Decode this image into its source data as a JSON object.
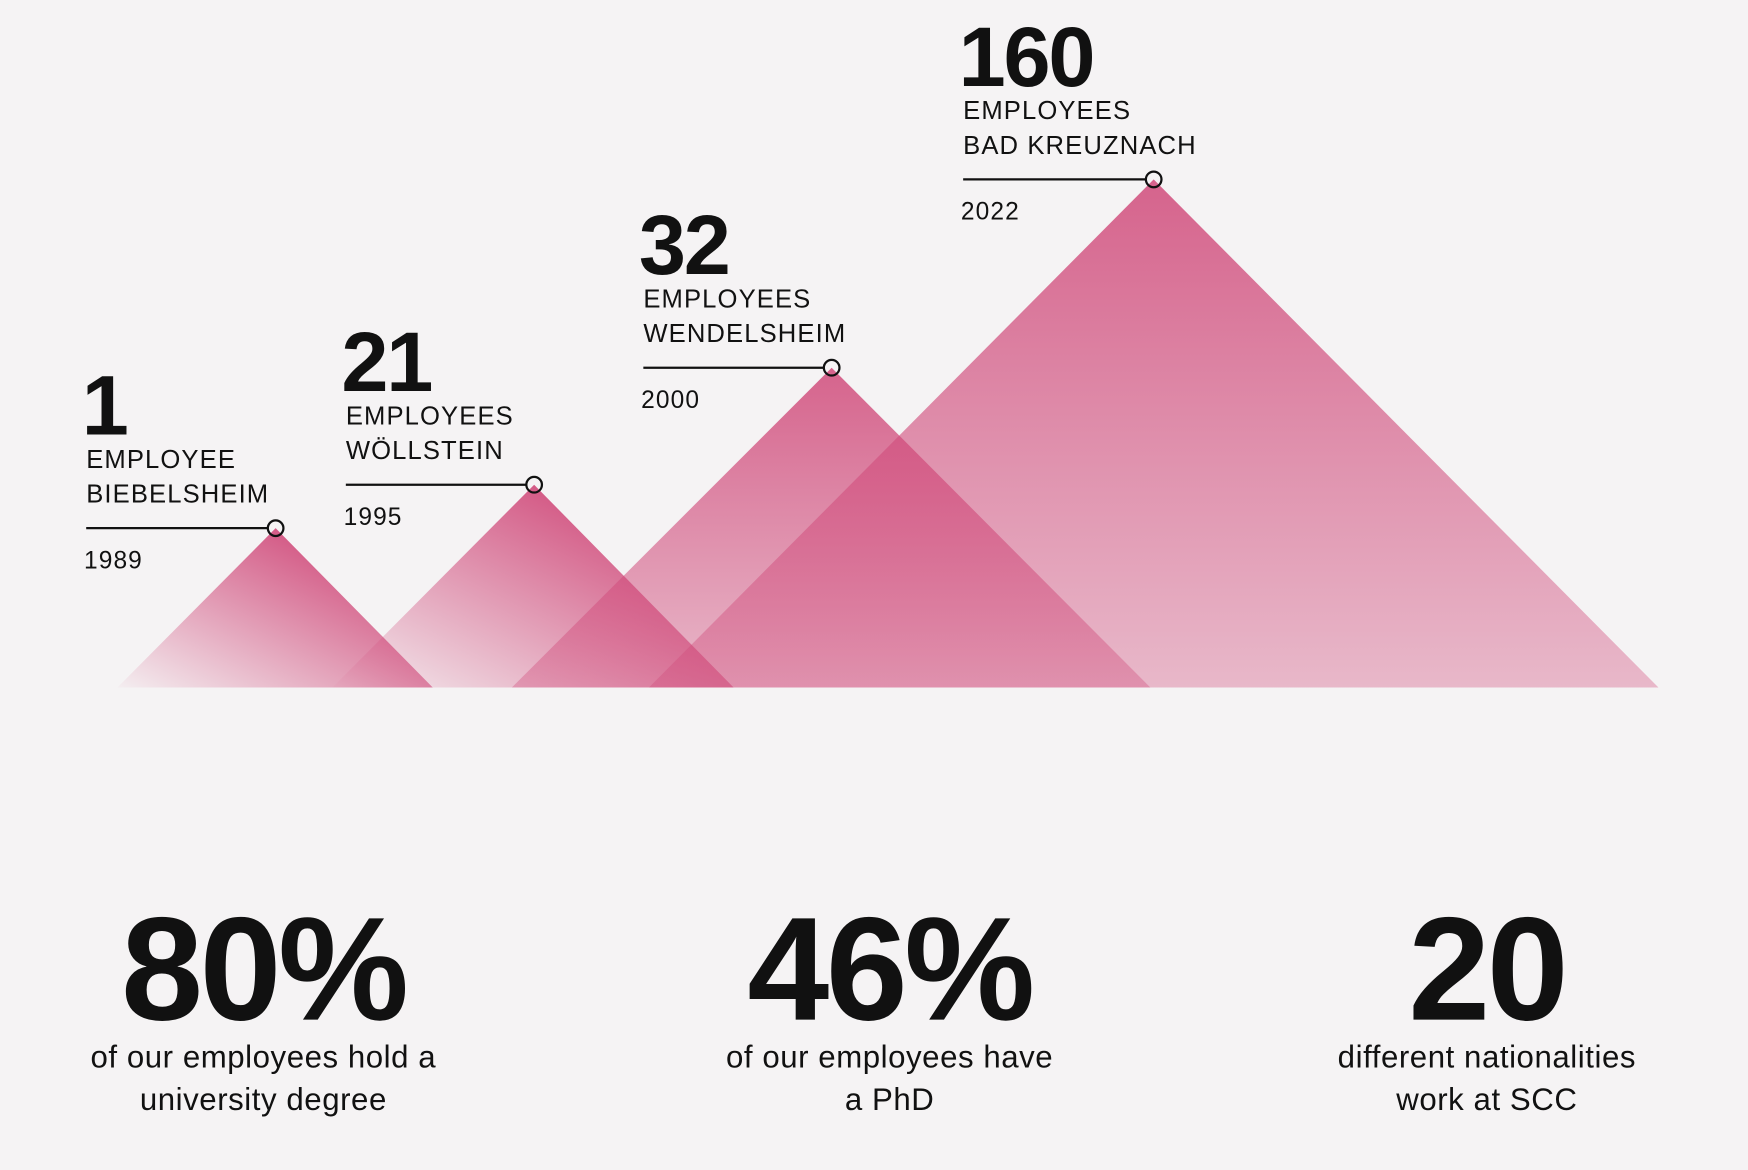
{
  "milestones": [
    {
      "count": "1",
      "label": [
        "EMPLOYEE",
        "BIEBELSHEIM"
      ],
      "year": "1989"
    },
    {
      "count": "21",
      "label": [
        "EMPLOYEES",
        "WÖLLSTEIN"
      ],
      "year": "1995"
    },
    {
      "count": "32",
      "label": [
        "EMPLOYEES",
        "WENDELSHEIM"
      ],
      "year": "2000"
    },
    {
      "count": "160",
      "label": [
        "EMPLOYEES",
        "BAD KREUZNACH"
      ],
      "year": "2022"
    }
  ],
  "stats": [
    {
      "value": "80%",
      "text": [
        "of our employees hold a",
        "university degree"
      ]
    },
    {
      "value": "46%",
      "text": [
        "of our employees have",
        "a PhD"
      ]
    },
    {
      "value": "20",
      "text": [
        "different nationalities",
        "work at SCC"
      ]
    }
  ]
}
